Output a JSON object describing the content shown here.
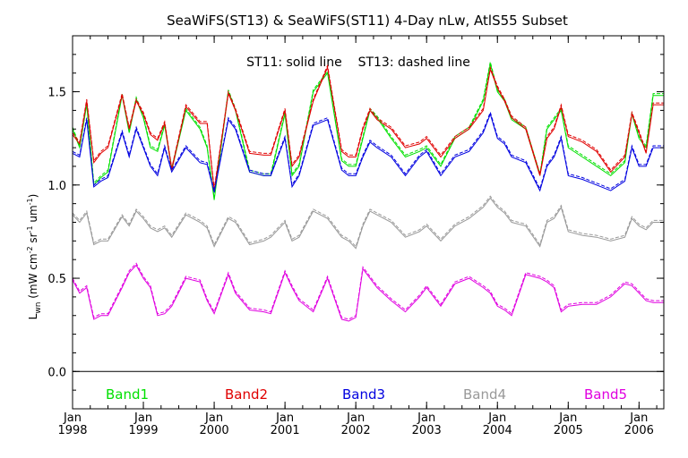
{
  "chart_data": {
    "type": "line",
    "title": "SeaWiFS(ST13) & SeaWiFS(ST11) 4-Day nLw, AtlS55 Subset",
    "annotation": "ST11: solid line    ST13: dashed line",
    "ylabel_main": "L",
    "ylabel_sub": "wn",
    "ylabel_units_open": " (mW cm",
    "ylabel_exp1": "-2",
    "ylabel_units_mid1": " sr",
    "ylabel_exp2": "-1",
    "ylabel_units_mid2": " um",
    "ylabel_exp3": "-1",
    "ylabel_units_close": ")",
    "ylim": [
      -0.2,
      1.8
    ],
    "xlim": [
      1998.0,
      2006.35
    ],
    "yticks": [
      0.0,
      0.5,
      1.0,
      1.5
    ],
    "ytick_labels": [
      "0.0",
      "0.5",
      "1.0",
      "1.5"
    ],
    "xticks": [
      1998,
      1999,
      2000,
      2001,
      2002,
      2003,
      2004,
      2005,
      2006
    ],
    "xtick_month_label": "Jan",
    "xtick_year_labels": [
      "1998",
      "1999",
      "2000",
      "2001",
      "2002",
      "2003",
      "2004",
      "2005",
      "2006"
    ],
    "zero_line": true,
    "grid": false,
    "x": [
      1998.0,
      1998.1,
      1998.2,
      1998.3,
      1998.4,
      1998.5,
      1998.7,
      1998.8,
      1998.9,
      1999.0,
      1999.1,
      1999.2,
      1999.3,
      1999.4,
      1999.6,
      1999.8,
      1999.9,
      2000.0,
      2000.2,
      2000.3,
      2000.5,
      2000.7,
      2000.8,
      2001.0,
      2001.1,
      2001.2,
      2001.4,
      2001.6,
      2001.8,
      2001.9,
      2002.0,
      2002.1,
      2002.2,
      2002.3,
      2002.5,
      2002.7,
      2002.9,
      2003.0,
      2003.2,
      2003.4,
      2003.6,
      2003.8,
      2003.9,
      2004.0,
      2004.1,
      2004.2,
      2004.4,
      2004.6,
      2004.7,
      2004.8,
      2004.9,
      2005.0,
      2005.2,
      2005.4,
      2005.6,
      2005.8,
      2005.9,
      2006.0,
      2006.1,
      2006.2,
      2006.35
    ],
    "series": [
      {
        "name": "Band1",
        "color": "#00e000",
        "solid": [
          1.3,
          1.2,
          1.43,
          1.0,
          1.04,
          1.07,
          1.48,
          1.28,
          1.46,
          1.36,
          1.2,
          1.18,
          1.32,
          1.08,
          1.4,
          1.3,
          1.2,
          0.92,
          1.5,
          1.4,
          1.07,
          1.05,
          1.05,
          1.38,
          1.05,
          1.1,
          1.5,
          1.6,
          1.13,
          1.1,
          1.1,
          1.25,
          1.4,
          1.36,
          1.25,
          1.15,
          1.18,
          1.2,
          1.1,
          1.25,
          1.3,
          1.45,
          1.65,
          1.5,
          1.45,
          1.35,
          1.3,
          1.05,
          1.3,
          1.35,
          1.4,
          1.2,
          1.15,
          1.1,
          1.05,
          1.12,
          1.38,
          1.25,
          1.2,
          1.48,
          1.48
        ],
        "dashed": [
          1.31,
          1.21,
          1.44,
          1.01,
          1.05,
          1.08,
          1.49,
          1.29,
          1.47,
          1.37,
          1.21,
          1.19,
          1.33,
          1.09,
          1.41,
          1.31,
          1.21,
          0.93,
          1.51,
          1.41,
          1.08,
          1.06,
          1.06,
          1.39,
          1.06,
          1.11,
          1.51,
          1.61,
          1.14,
          1.11,
          1.11,
          1.26,
          1.41,
          1.37,
          1.26,
          1.16,
          1.19,
          1.21,
          1.11,
          1.26,
          1.31,
          1.46,
          1.66,
          1.51,
          1.46,
          1.36,
          1.31,
          1.06,
          1.31,
          1.36,
          1.41,
          1.21,
          1.16,
          1.11,
          1.06,
          1.13,
          1.39,
          1.26,
          1.21,
          1.49,
          1.49
        ]
      },
      {
        "name": "Band2",
        "color": "#e00000",
        "solid": [
          1.27,
          1.22,
          1.45,
          1.12,
          1.17,
          1.2,
          1.48,
          1.3,
          1.45,
          1.38,
          1.27,
          1.24,
          1.33,
          1.08,
          1.42,
          1.33,
          1.33,
          0.97,
          1.49,
          1.4,
          1.17,
          1.16,
          1.16,
          1.4,
          1.1,
          1.15,
          1.45,
          1.63,
          1.18,
          1.15,
          1.15,
          1.3,
          1.4,
          1.35,
          1.3,
          1.2,
          1.22,
          1.25,
          1.15,
          1.25,
          1.3,
          1.4,
          1.62,
          1.52,
          1.45,
          1.36,
          1.3,
          1.05,
          1.25,
          1.3,
          1.42,
          1.26,
          1.23,
          1.18,
          1.07,
          1.15,
          1.38,
          1.28,
          1.17,
          1.43,
          1.43
        ],
        "dashed": [
          1.28,
          1.23,
          1.46,
          1.13,
          1.18,
          1.21,
          1.49,
          1.31,
          1.46,
          1.39,
          1.28,
          1.25,
          1.34,
          1.09,
          1.43,
          1.34,
          1.34,
          0.98,
          1.5,
          1.41,
          1.18,
          1.17,
          1.17,
          1.41,
          1.11,
          1.16,
          1.46,
          1.64,
          1.19,
          1.16,
          1.16,
          1.31,
          1.41,
          1.36,
          1.31,
          1.21,
          1.23,
          1.26,
          1.16,
          1.26,
          1.31,
          1.41,
          1.63,
          1.53,
          1.46,
          1.37,
          1.31,
          1.06,
          1.26,
          1.31,
          1.43,
          1.27,
          1.24,
          1.19,
          1.08,
          1.16,
          1.39,
          1.29,
          1.18,
          1.44,
          1.44
        ]
      },
      {
        "name": "Band3",
        "color": "#0000e0",
        "solid": [
          1.17,
          1.15,
          1.35,
          0.99,
          1.02,
          1.04,
          1.28,
          1.15,
          1.3,
          1.2,
          1.1,
          1.05,
          1.2,
          1.07,
          1.2,
          1.12,
          1.11,
          0.96,
          1.35,
          1.3,
          1.07,
          1.05,
          1.05,
          1.25,
          0.99,
          1.05,
          1.32,
          1.35,
          1.08,
          1.05,
          1.05,
          1.15,
          1.23,
          1.2,
          1.15,
          1.05,
          1.15,
          1.18,
          1.05,
          1.15,
          1.18,
          1.28,
          1.38,
          1.25,
          1.22,
          1.15,
          1.12,
          0.97,
          1.1,
          1.15,
          1.25,
          1.05,
          1.03,
          1.0,
          0.97,
          1.02,
          1.2,
          1.1,
          1.1,
          1.2,
          1.2
        ],
        "dashed": [
          1.18,
          1.16,
          1.36,
          1.0,
          1.03,
          1.05,
          1.29,
          1.16,
          1.31,
          1.21,
          1.11,
          1.06,
          1.21,
          1.08,
          1.21,
          1.13,
          1.12,
          0.97,
          1.36,
          1.31,
          1.08,
          1.06,
          1.06,
          1.26,
          1.0,
          1.06,
          1.33,
          1.36,
          1.09,
          1.06,
          1.06,
          1.16,
          1.24,
          1.21,
          1.16,
          1.06,
          1.16,
          1.19,
          1.06,
          1.16,
          1.19,
          1.29,
          1.39,
          1.26,
          1.23,
          1.16,
          1.13,
          0.98,
          1.11,
          1.16,
          1.26,
          1.06,
          1.04,
          1.01,
          0.98,
          1.03,
          1.21,
          1.11,
          1.11,
          1.21,
          1.21
        ]
      },
      {
        "name": "Band4",
        "color": "#999999",
        "solid": [
          0.84,
          0.8,
          0.85,
          0.68,
          0.7,
          0.7,
          0.83,
          0.78,
          0.86,
          0.82,
          0.77,
          0.75,
          0.77,
          0.72,
          0.84,
          0.8,
          0.77,
          0.67,
          0.82,
          0.8,
          0.68,
          0.7,
          0.72,
          0.8,
          0.7,
          0.72,
          0.86,
          0.82,
          0.72,
          0.7,
          0.66,
          0.78,
          0.86,
          0.84,
          0.8,
          0.72,
          0.75,
          0.78,
          0.7,
          0.78,
          0.82,
          0.88,
          0.93,
          0.88,
          0.85,
          0.8,
          0.78,
          0.67,
          0.8,
          0.82,
          0.88,
          0.75,
          0.73,
          0.72,
          0.7,
          0.72,
          0.82,
          0.78,
          0.76,
          0.8,
          0.8
        ],
        "dashed": [
          0.85,
          0.81,
          0.86,
          0.69,
          0.71,
          0.71,
          0.84,
          0.79,
          0.87,
          0.83,
          0.78,
          0.76,
          0.78,
          0.73,
          0.85,
          0.81,
          0.78,
          0.68,
          0.83,
          0.81,
          0.69,
          0.71,
          0.73,
          0.81,
          0.71,
          0.73,
          0.87,
          0.83,
          0.73,
          0.71,
          0.67,
          0.79,
          0.87,
          0.85,
          0.81,
          0.73,
          0.76,
          0.79,
          0.71,
          0.79,
          0.83,
          0.89,
          0.94,
          0.89,
          0.86,
          0.81,
          0.79,
          0.68,
          0.81,
          0.83,
          0.89,
          0.76,
          0.74,
          0.73,
          0.71,
          0.73,
          0.83,
          0.79,
          0.77,
          0.81,
          0.81
        ]
      },
      {
        "name": "Band5",
        "color": "#e000e0",
        "solid": [
          0.49,
          0.42,
          0.45,
          0.28,
          0.3,
          0.3,
          0.45,
          0.53,
          0.57,
          0.5,
          0.45,
          0.3,
          0.31,
          0.35,
          0.5,
          0.48,
          0.38,
          0.31,
          0.52,
          0.42,
          0.33,
          0.32,
          0.31,
          0.53,
          0.45,
          0.38,
          0.32,
          0.5,
          0.28,
          0.27,
          0.29,
          0.55,
          0.5,
          0.45,
          0.38,
          0.32,
          0.4,
          0.45,
          0.35,
          0.47,
          0.5,
          0.45,
          0.42,
          0.35,
          0.33,
          0.3,
          0.52,
          0.5,
          0.48,
          0.45,
          0.32,
          0.35,
          0.36,
          0.36,
          0.4,
          0.47,
          0.46,
          0.42,
          0.38,
          0.37,
          0.37
        ],
        "dashed": [
          0.5,
          0.43,
          0.46,
          0.29,
          0.31,
          0.31,
          0.46,
          0.54,
          0.58,
          0.51,
          0.46,
          0.31,
          0.32,
          0.36,
          0.51,
          0.49,
          0.39,
          0.32,
          0.53,
          0.43,
          0.34,
          0.33,
          0.32,
          0.54,
          0.46,
          0.39,
          0.33,
          0.51,
          0.29,
          0.28,
          0.3,
          0.56,
          0.51,
          0.46,
          0.39,
          0.33,
          0.41,
          0.46,
          0.36,
          0.48,
          0.51,
          0.46,
          0.43,
          0.36,
          0.34,
          0.31,
          0.53,
          0.51,
          0.49,
          0.46,
          0.33,
          0.36,
          0.37,
          0.37,
          0.41,
          0.48,
          0.47,
          0.43,
          0.39,
          0.38,
          0.38
        ]
      }
    ]
  }
}
